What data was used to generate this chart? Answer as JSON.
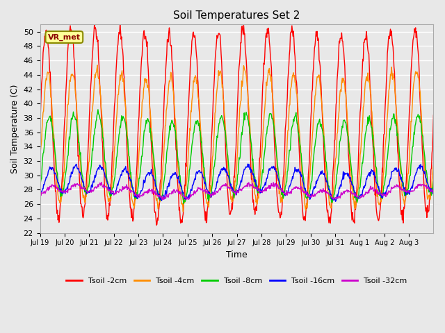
{
  "title": "Soil Temperatures Set 2",
  "xlabel": "Time",
  "ylabel": "Soil Temperature (C)",
  "ylim": [
    22,
    51
  ],
  "yticks": [
    22,
    24,
    26,
    28,
    30,
    32,
    34,
    36,
    38,
    40,
    42,
    44,
    46,
    48,
    50
  ],
  "background_color": "#e8e8e8",
  "plot_bg_color": "#e8e8e8",
  "grid_color": "#ffffff",
  "annotation_text": "VR_met",
  "annotation_box_color": "#ffff99",
  "annotation_box_edge": "#8b8b00",
  "series_colors": {
    "Tsoil -2cm": "#ff0000",
    "Tsoil -4cm": "#ff8c00",
    "Tsoil -8cm": "#00cc00",
    "Tsoil -16cm": "#0000ff",
    "Tsoil -32cm": "#cc00cc"
  },
  "x_tick_labels": [
    "Jul 19",
    "Jul 20",
    "Jul 21",
    "Jul 22",
    "Jul 23",
    "Jul 24",
    "Jul 25",
    "Jul 26",
    "Jul 27",
    "Jul 28",
    "Jul 29",
    "Jul 30",
    "Jul 31",
    "Aug 1",
    "Aug 2",
    "Aug 3"
  ],
  "num_days": 16,
  "points_per_day": 48
}
